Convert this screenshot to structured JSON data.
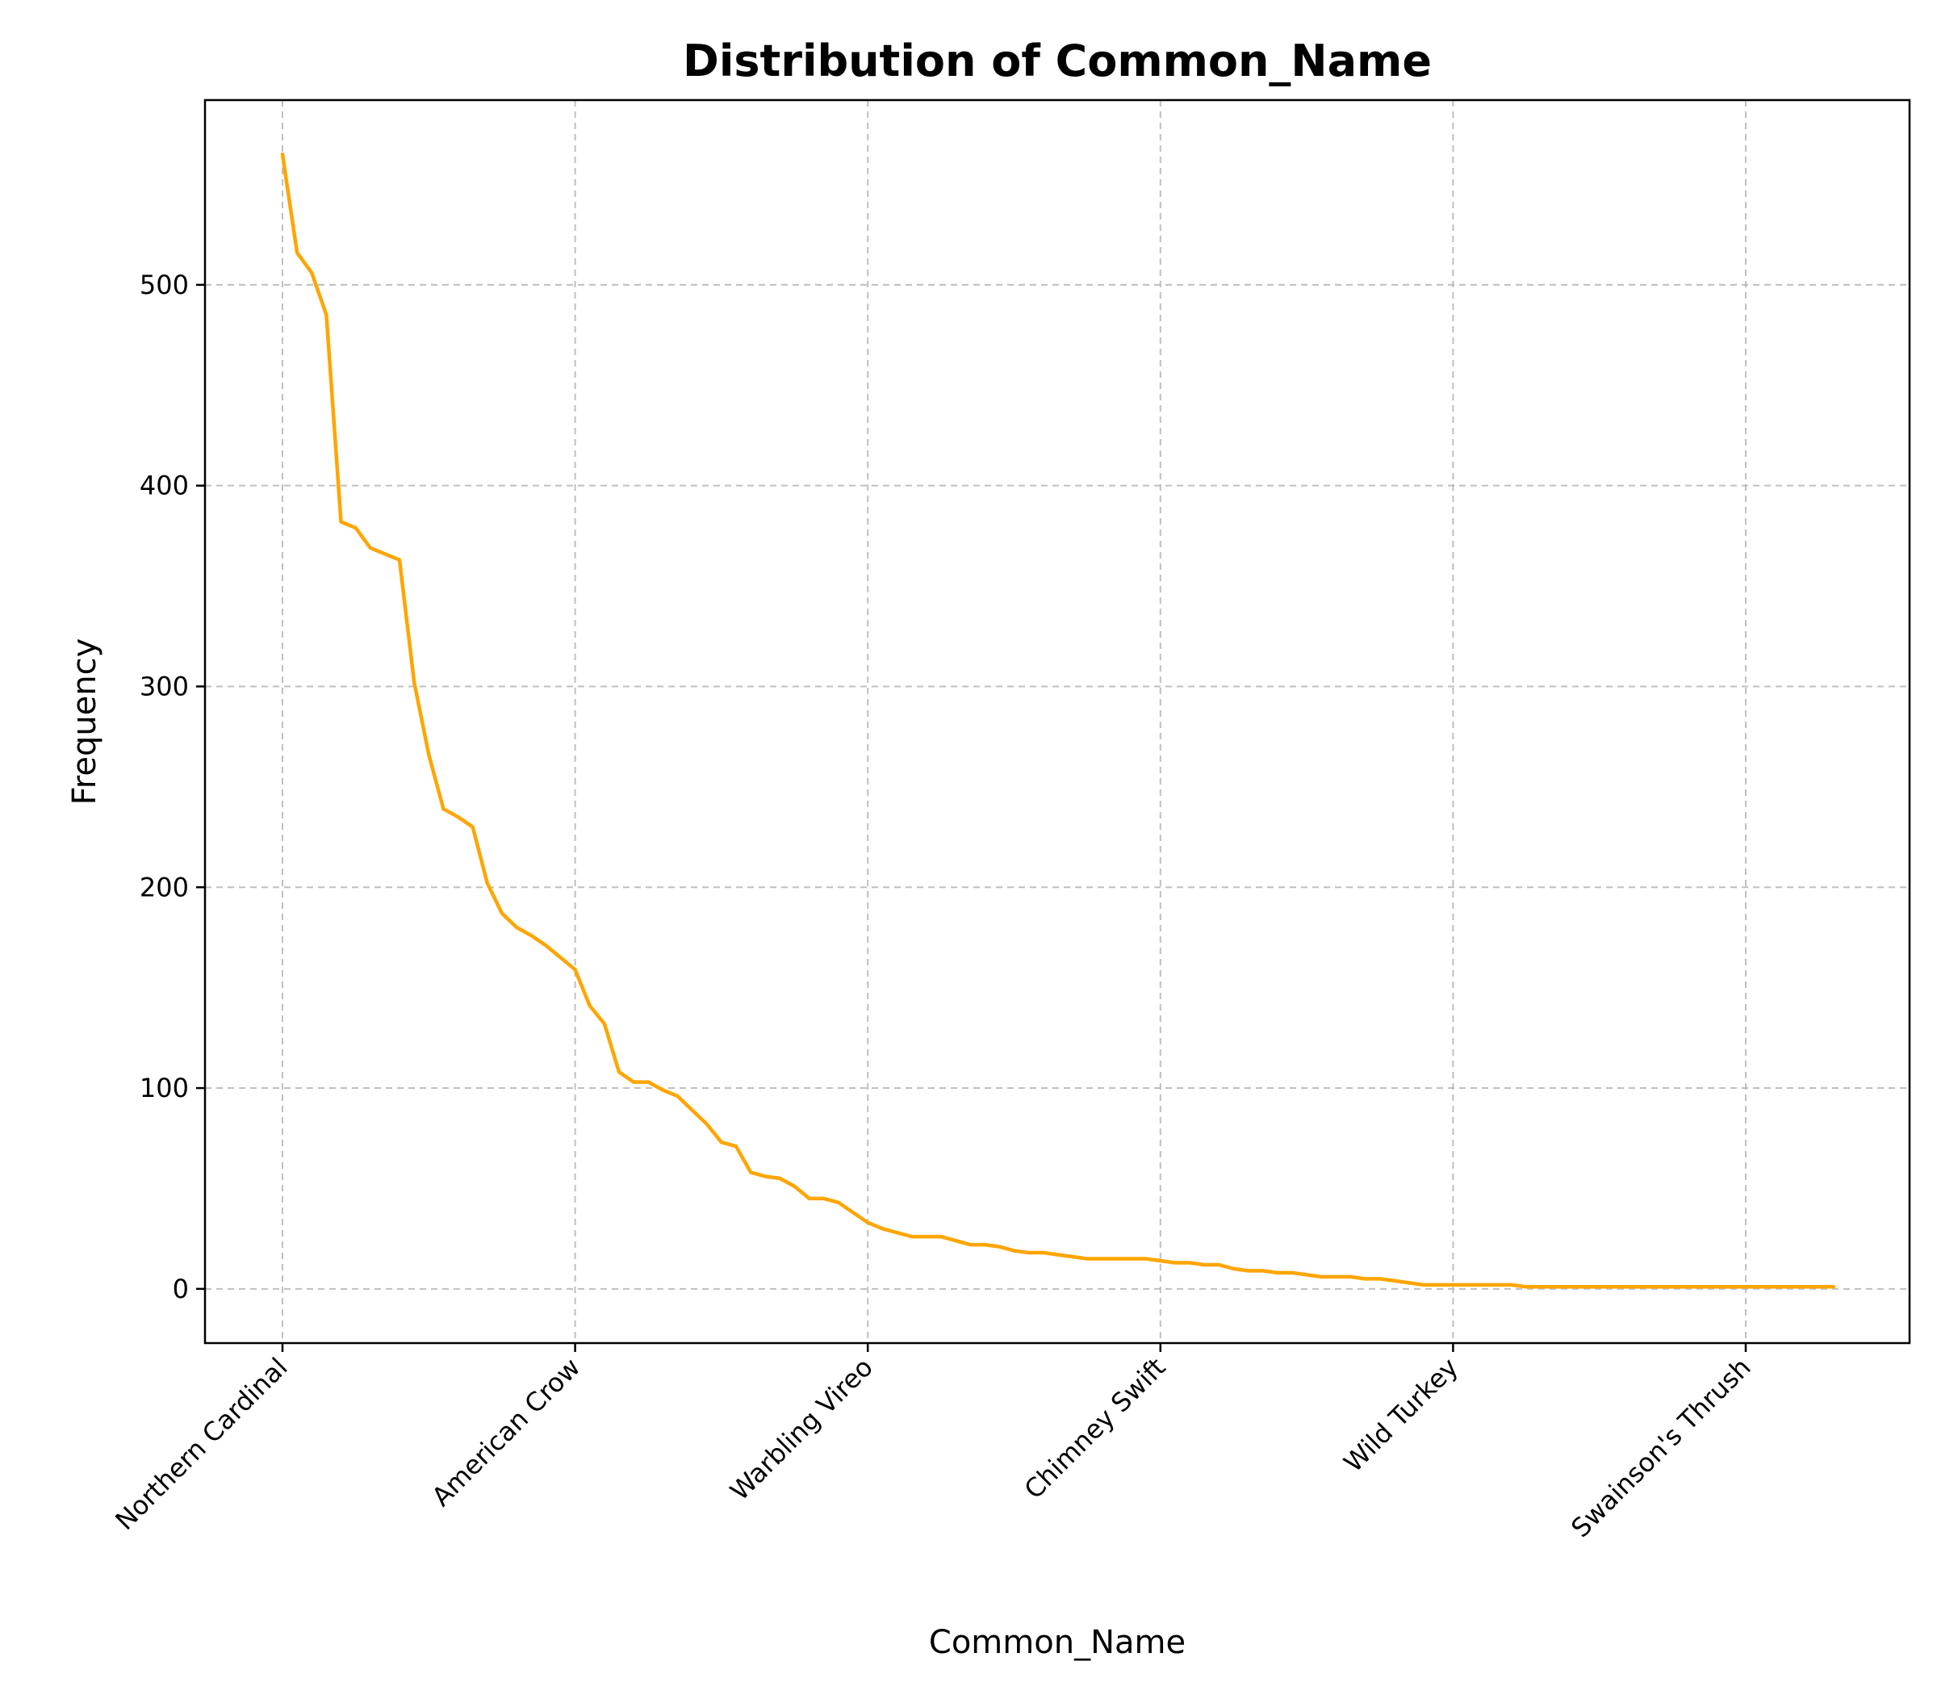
{
  "chart_data": {
    "type": "line",
    "title": "Distribution of Common_Name",
    "xlabel": "Common_Name",
    "ylabel": "Frequency",
    "ylim": [
      -27,
      592
    ],
    "grid": true,
    "line_color": "#FFA500",
    "x_ticks": [
      {
        "index": 0,
        "label": "Northern Cardinal"
      },
      {
        "index": 20,
        "label": "American Crow"
      },
      {
        "index": 40,
        "label": "Warbling Vireo"
      },
      {
        "index": 60,
        "label": "Chimney Swift"
      },
      {
        "index": 80,
        "label": "Wild Turkey"
      },
      {
        "index": 100,
        "label": "Swainson's Thrush"
      }
    ],
    "y_ticks": [
      0,
      100,
      200,
      300,
      400,
      500
    ],
    "series": [
      {
        "values": [
          565,
          516,
          506,
          485,
          382,
          379,
          369,
          366,
          363,
          302,
          266,
          239,
          235,
          230,
          202,
          187,
          180,
          176,
          171,
          165,
          159,
          141,
          132,
          108,
          103,
          103,
          99,
          96,
          89,
          82,
          73,
          71,
          58,
          56,
          55,
          51,
          45,
          45,
          43,
          38,
          33,
          30,
          28,
          26,
          26,
          26,
          24,
          22,
          22,
          21,
          19,
          18,
          18,
          17,
          16,
          15,
          15,
          15,
          15,
          15,
          14,
          13,
          13,
          12,
          12,
          10,
          9,
          9,
          8,
          8,
          7,
          6,
          6,
          6,
          5,
          5,
          4,
          3,
          2,
          2,
          2,
          2,
          2,
          2,
          2,
          1,
          1,
          1,
          1,
          1,
          1,
          1,
          1,
          1,
          1,
          1,
          1,
          1,
          1,
          1,
          1,
          1,
          1,
          1,
          1,
          1,
          1
        ]
      }
    ]
  }
}
